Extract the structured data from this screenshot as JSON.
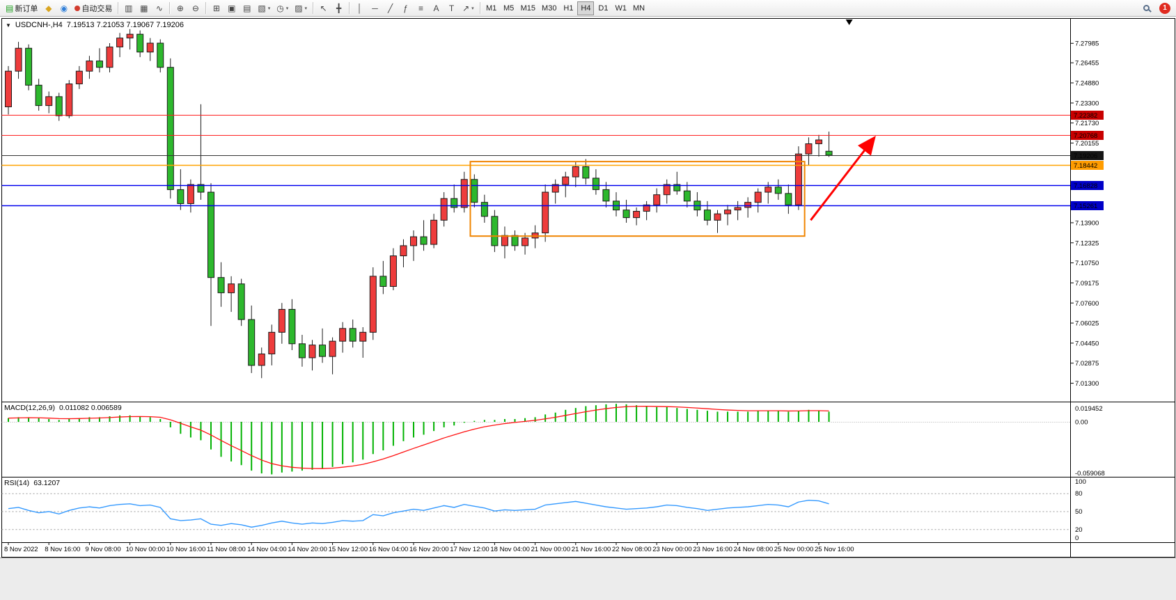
{
  "toolbar": {
    "new_order_label": "新订单",
    "autotrading_label": "自动交易",
    "timeframes": [
      "M1",
      "M5",
      "M15",
      "M30",
      "H1",
      "H4",
      "D1",
      "W1",
      "MN"
    ],
    "active_timeframe": "H4",
    "notification_count": "1"
  },
  "icons": {
    "new_order": "▤",
    "diamond": "◆",
    "globe": "◉",
    "bar_chart": "▥",
    "candles": "▦",
    "line_chart": "∿",
    "zoom_in": "⊕",
    "zoom_out": "⊖",
    "tile": "⊞",
    "cascade": "▣",
    "arrange": "▤",
    "new_chart": "▧",
    "clock": "◷",
    "template": "▨",
    "cursor": "↖",
    "crosshair": "╋",
    "vline": "│",
    "hline": "─",
    "trendline": "╱",
    "fibonacci": "ƒ",
    "channel": "≡",
    "text": "A",
    "label": "T",
    "arrows": "↗",
    "dropdown": "▾",
    "collapse": "▼"
  },
  "chart": {
    "symbol_period": "USDCNH-,H4",
    "ohlc": "7.19513 7.21053 7.19067 7.19206"
  },
  "chart_data": {
    "type": "candlestick",
    "title": "USDCNH-,H4",
    "symbol": "USDCNH-",
    "period": "H4",
    "last_ohlc": {
      "open": 7.19513,
      "high": 7.21053,
      "low": 7.19067,
      "close": 7.19206
    },
    "price_axis": [
      "7.27985",
      "7.26455",
      "7.24880",
      "7.23300",
      "7.21730",
      "7.20155",
      "7.13900",
      "7.12325",
      "7.10750",
      "7.09175",
      "7.07600",
      "7.06025",
      "7.04450",
      "7.02875",
      "7.01300"
    ],
    "time_labels": [
      "8 Nov 2022",
      "8 Nov 16:00",
      "9 Nov 08:00",
      "10 Nov 00:00",
      "10 Nov 16:00",
      "11 Nov 08:00",
      "14 Nov 04:00",
      "14 Nov 20:00",
      "15 Nov 12:00",
      "16 Nov 04:00",
      "16 Nov 20:00",
      "17 Nov 12:00",
      "18 Nov 04:00",
      "21 Nov 00:00",
      "21 Nov 16:00",
      "22 Nov 08:00",
      "23 Nov 00:00",
      "23 Nov 16:00",
      "24 Nov 08:00",
      "25 Nov 00:00",
      "25 Nov 16:00"
    ],
    "hlines": [
      {
        "price": 7.22382,
        "label": "7.22382",
        "color": "#ff2020",
        "tag": "#c80000",
        "text": "#ffffff",
        "width": 1
      },
      {
        "price": 7.20768,
        "label": "7.20768",
        "color": "#ff2020",
        "tag": "#c80000",
        "text": "#ffffff",
        "width": 1
      },
      {
        "price": 7.19206,
        "label": "7.19206",
        "color": "#333333",
        "tag": "#151515",
        "text": "#ffffff",
        "width": 1
      },
      {
        "price": 7.18442,
        "label": "7.18442",
        "color": "#ffa200",
        "tag": "#ff9c00",
        "text": "#000000",
        "width": 1.5
      },
      {
        "price": 7.16828,
        "label": "7.16828",
        "color": "#0000ee",
        "tag": "#0000c8",
        "text": "#ffffff",
        "width": 1.5
      },
      {
        "price": 7.15261,
        "label": "7.15261",
        "color": "#0000ee",
        "tag": "#0000c8",
        "text": "#ffffff",
        "width": 1.5
      }
    ],
    "box": {
      "i1": 45.6,
      "i2": 78.6,
      "p_top": 7.187,
      "p_bottom": 7.1285,
      "color": "#f08400"
    },
    "arrow": {
      "i1": 79.2,
      "p1": 7.141,
      "i2": 85.5,
      "p2": 7.206,
      "color": "#ff0000"
    },
    "candles": [
      [
        7.23,
        7.262,
        7.224,
        7.258
      ],
      [
        7.258,
        7.281,
        7.252,
        7.276
      ],
      [
        7.276,
        7.279,
        7.243,
        7.247
      ],
      [
        7.247,
        7.252,
        7.227,
        7.231
      ],
      [
        7.231,
        7.242,
        7.225,
        7.238
      ],
      [
        7.238,
        7.241,
        7.219,
        7.223
      ],
      [
        7.223,
        7.251,
        7.221,
        7.248
      ],
      [
        7.248,
        7.262,
        7.244,
        7.258
      ],
      [
        7.258,
        7.27,
        7.252,
        7.266
      ],
      [
        7.266,
        7.276,
        7.257,
        7.261
      ],
      [
        7.261,
        7.28,
        7.257,
        7.277
      ],
      [
        7.277,
        7.288,
        7.269,
        7.284
      ],
      [
        7.284,
        7.291,
        7.275,
        7.287
      ],
      [
        7.287,
        7.29,
        7.269,
        7.273
      ],
      [
        7.273,
        7.284,
        7.266,
        7.28
      ],
      [
        7.28,
        7.283,
        7.257,
        7.261
      ],
      [
        7.261,
        7.268,
        7.158,
        7.165
      ],
      [
        7.165,
        7.181,
        7.149,
        7.154
      ],
      [
        7.154,
        7.173,
        7.147,
        7.169
      ],
      [
        7.169,
        7.232,
        7.157,
        7.163
      ],
      [
        7.163,
        7.17,
        7.058,
        7.096
      ],
      [
        7.096,
        7.108,
        7.073,
        7.084
      ],
      [
        7.084,
        7.097,
        7.069,
        7.091
      ],
      [
        7.091,
        7.095,
        7.058,
        7.063
      ],
      [
        7.063,
        7.074,
        7.021,
        7.027
      ],
      [
        7.027,
        7.041,
        7.017,
        7.036
      ],
      [
        7.036,
        7.059,
        7.027,
        7.053
      ],
      [
        7.053,
        7.076,
        7.044,
        7.071
      ],
      [
        7.071,
        7.079,
        7.039,
        7.044
      ],
      [
        7.044,
        7.051,
        7.026,
        7.033
      ],
      [
        7.033,
        7.047,
        7.023,
        7.043
      ],
      [
        7.043,
        7.056,
        7.029,
        7.034
      ],
      [
        7.034,
        7.049,
        7.02,
        7.046
      ],
      [
        7.046,
        7.061,
        7.037,
        7.056
      ],
      [
        7.056,
        7.063,
        7.041,
        7.046
      ],
      [
        7.046,
        7.057,
        7.033,
        7.053
      ],
      [
        7.053,
        7.104,
        7.047,
        7.097
      ],
      [
        7.097,
        7.109,
        7.083,
        7.089
      ],
      [
        7.089,
        7.119,
        7.086,
        7.113
      ],
      [
        7.113,
        7.126,
        7.104,
        7.121
      ],
      [
        7.121,
        7.133,
        7.109,
        7.128
      ],
      [
        7.128,
        7.141,
        7.117,
        7.122
      ],
      [
        7.122,
        7.146,
        7.119,
        7.141
      ],
      [
        7.141,
        7.163,
        7.136,
        7.158
      ],
      [
        7.158,
        7.169,
        7.147,
        7.151
      ],
      [
        7.151,
        7.179,
        7.147,
        7.173
      ],
      [
        7.173,
        7.177,
        7.151,
        7.155
      ],
      [
        7.155,
        7.161,
        7.139,
        7.144
      ],
      [
        7.144,
        7.149,
        7.116,
        7.121
      ],
      [
        7.121,
        7.136,
        7.111,
        7.129
      ],
      [
        7.129,
        7.133,
        7.117,
        7.121
      ],
      [
        7.121,
        7.131,
        7.114,
        7.127
      ],
      [
        7.127,
        7.137,
        7.119,
        7.131
      ],
      [
        7.131,
        7.169,
        7.124,
        7.163
      ],
      [
        7.163,
        7.173,
        7.154,
        7.169
      ],
      [
        7.169,
        7.179,
        7.159,
        7.175
      ],
      [
        7.175,
        7.187,
        7.167,
        7.183
      ],
      [
        7.183,
        7.189,
        7.169,
        7.174
      ],
      [
        7.174,
        7.181,
        7.161,
        7.165
      ],
      [
        7.165,
        7.171,
        7.151,
        7.156
      ],
      [
        7.156,
        7.163,
        7.144,
        7.149
      ],
      [
        7.149,
        7.157,
        7.139,
        7.143
      ],
      [
        7.143,
        7.151,
        7.137,
        7.148
      ],
      [
        7.148,
        7.156,
        7.141,
        7.153
      ],
      [
        7.153,
        7.166,
        7.147,
        7.161
      ],
      [
        7.161,
        7.173,
        7.154,
        7.169
      ],
      [
        7.169,
        7.179,
        7.161,
        7.164
      ],
      [
        7.164,
        7.171,
        7.151,
        7.156
      ],
      [
        7.156,
        7.163,
        7.144,
        7.149
      ],
      [
        7.149,
        7.156,
        7.137,
        7.141
      ],
      [
        7.141,
        7.149,
        7.131,
        7.146
      ],
      [
        7.146,
        7.153,
        7.137,
        7.149
      ],
      [
        7.149,
        7.156,
        7.141,
        7.151
      ],
      [
        7.151,
        7.159,
        7.143,
        7.155
      ],
      [
        7.155,
        7.166,
        7.147,
        7.163
      ],
      [
        7.163,
        7.171,
        7.154,
        7.167
      ],
      [
        7.167,
        7.173,
        7.157,
        7.162
      ],
      [
        7.162,
        7.169,
        7.146,
        7.153
      ],
      [
        7.153,
        7.199,
        7.149,
        7.193
      ],
      [
        7.193,
        7.206,
        7.184,
        7.201
      ],
      [
        7.201,
        7.208,
        7.191,
        7.204
      ],
      [
        7.19513,
        7.21053,
        7.19067,
        7.19206
      ]
    ],
    "macd": {
      "label": "MACD(12,26,9)",
      "values_label": "0.011082 0.006589",
      "axis": [
        "0.019452",
        "0.00",
        "-0.059068"
      ],
      "max": 0.019452,
      "min": -0.059068,
      "main": [
        0.004,
        0.005,
        0.005,
        0.004,
        0.003,
        0.002,
        0.003,
        0.004,
        0.005,
        0.005,
        0.006,
        0.007,
        0.007,
        0.006,
        0.005,
        0.003,
        -0.006,
        -0.013,
        -0.017,
        -0.02,
        -0.03,
        -0.038,
        -0.043,
        -0.047,
        -0.053,
        -0.056,
        -0.057,
        -0.055,
        -0.054,
        -0.053,
        -0.052,
        -0.051,
        -0.049,
        -0.046,
        -0.044,
        -0.041,
        -0.035,
        -0.031,
        -0.026,
        -0.021,
        -0.017,
        -0.014,
        -0.01,
        -0.006,
        -0.004,
        -0.001,
        0.001,
        0.002,
        0.002,
        0.003,
        0.003,
        0.004,
        0.005,
        0.008,
        0.01,
        0.013,
        0.015,
        0.017,
        0.018,
        0.019,
        0.0195,
        0.019,
        0.018,
        0.017,
        0.016,
        0.016,
        0.015,
        0.014,
        0.013,
        0.012,
        0.011,
        0.011,
        0.011,
        0.011,
        0.012,
        0.012,
        0.012,
        0.011,
        0.012,
        0.013,
        0.012,
        0.011
      ]
    },
    "rsi": {
      "label": "RSI(14)",
      "value_label": "63.1207",
      "levels": [
        "100",
        "80",
        "50",
        "20",
        "0"
      ],
      "dashed": [
        80,
        50,
        20
      ],
      "values": [
        55,
        57,
        52,
        48,
        50,
        46,
        52,
        56,
        58,
        56,
        60,
        62,
        63,
        60,
        61,
        57,
        38,
        35,
        36,
        38,
        29,
        27,
        30,
        28,
        24,
        27,
        31,
        34,
        31,
        29,
        31,
        30,
        32,
        35,
        34,
        35,
        45,
        43,
        48,
        51,
        54,
        52,
        56,
        60,
        57,
        62,
        59,
        56,
        51,
        53,
        52,
        53,
        54,
        61,
        63,
        65,
        67,
        64,
        61,
        58,
        56,
        54,
        55,
        56,
        58,
        61,
        60,
        57,
        55,
        52,
        54,
        56,
        57,
        58,
        60,
        62,
        61,
        58,
        66,
        69,
        68,
        63
      ]
    },
    "colors": {
      "bull": "#ee3c3c",
      "bear": "#2db82d",
      "wick": "#1a1a1a",
      "macd_bar": "#00b200",
      "macd_signal": "#ff1010",
      "rsi": "#3399ff",
      "frame": "#000000"
    }
  }
}
